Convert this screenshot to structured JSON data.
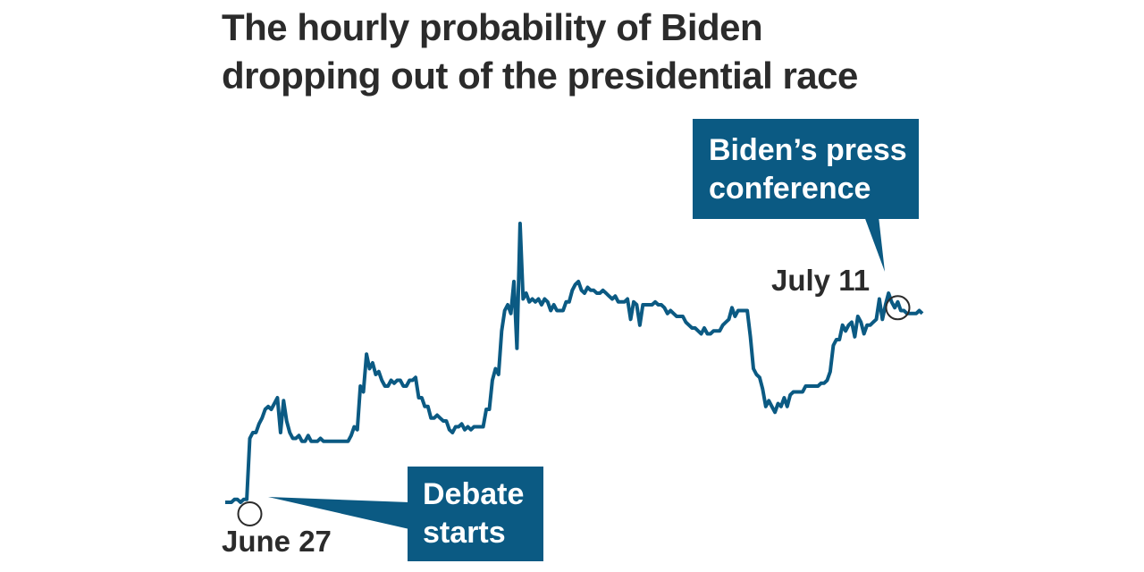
{
  "title_lines": [
    "The hourly probability of Biden",
    "dropping out of the presidential race"
  ],
  "colors": {
    "line": "#0b5a83",
    "callout": "#0b5a83",
    "text": "#2b2b2b"
  },
  "chart_data": {
    "type": "line",
    "title": "The hourly probability of Biden dropping out of the presidential race",
    "xlabel": "",
    "ylabel": "",
    "grid": false,
    "legend": "none",
    "x_start_label": "June 27",
    "x_end_label": "July 11",
    "series": [
      {
        "values": [
          4,
          4,
          4,
          5,
          5,
          4,
          5,
          5,
          26,
          28,
          28,
          31,
          33,
          36,
          37,
          36,
          38,
          40,
          28,
          39,
          32,
          28,
          26,
          26,
          27,
          25,
          25,
          27,
          25,
          25,
          25,
          26,
          25,
          25,
          25,
          25,
          25,
          25,
          25,
          25,
          25,
          27,
          30,
          29,
          44,
          42,
          55,
          50,
          52,
          48,
          49,
          46,
          44,
          44,
          46,
          45,
          46,
          46,
          44,
          44,
          46,
          46,
          47,
          40,
          40,
          37,
          37,
          33,
          33,
          34,
          33,
          32,
          32,
          29,
          28,
          30,
          30,
          31,
          29,
          30,
          29,
          30,
          30,
          30,
          30,
          36,
          36,
          46,
          50,
          48,
          63,
          70,
          72,
          69,
          80,
          57,
          100,
          74,
          76,
          73,
          74,
          73,
          74,
          72,
          74,
          73,
          70,
          72,
          70,
          70,
          70,
          73,
          73,
          77,
          79,
          80,
          77,
          76,
          78,
          77,
          77,
          76,
          76,
          77,
          76,
          75,
          74,
          75,
          73,
          73,
          73,
          74,
          67,
          73,
          72,
          65,
          72,
          72,
          72,
          72,
          73,
          72,
          72,
          71,
          69,
          70,
          69,
          68,
          68,
          68,
          66,
          65,
          64,
          64,
          63,
          62,
          64,
          62,
          62,
          63,
          63,
          63,
          65,
          66,
          67,
          71,
          68,
          70,
          70,
          70,
          70,
          61,
          50,
          48,
          47,
          43,
          37,
          39,
          37,
          35,
          38,
          37,
          40,
          37,
          41,
          42,
          42,
          42,
          42,
          44,
          44,
          44,
          44,
          44,
          45,
          45,
          46,
          49,
          58,
          60,
          60,
          65,
          63,
          65,
          66,
          61,
          68,
          66,
          62,
          65,
          65,
          66,
          67,
          74,
          67,
          72,
          76,
          73,
          71,
          73,
          70,
          70,
          69,
          69,
          69,
          69,
          70,
          69
        ]
      }
    ],
    "annotations": [
      {
        "label": "Debate starts",
        "at": "June 27"
      },
      {
        "label": "Biden’s press conference",
        "at": "July 11"
      }
    ]
  },
  "callouts": {
    "debate_line1": "Debate",
    "debate_line2": "starts",
    "press_line1": "Biden’s press",
    "press_line2": "conference"
  },
  "labels": {
    "start": "June 27",
    "end": "July 11"
  }
}
